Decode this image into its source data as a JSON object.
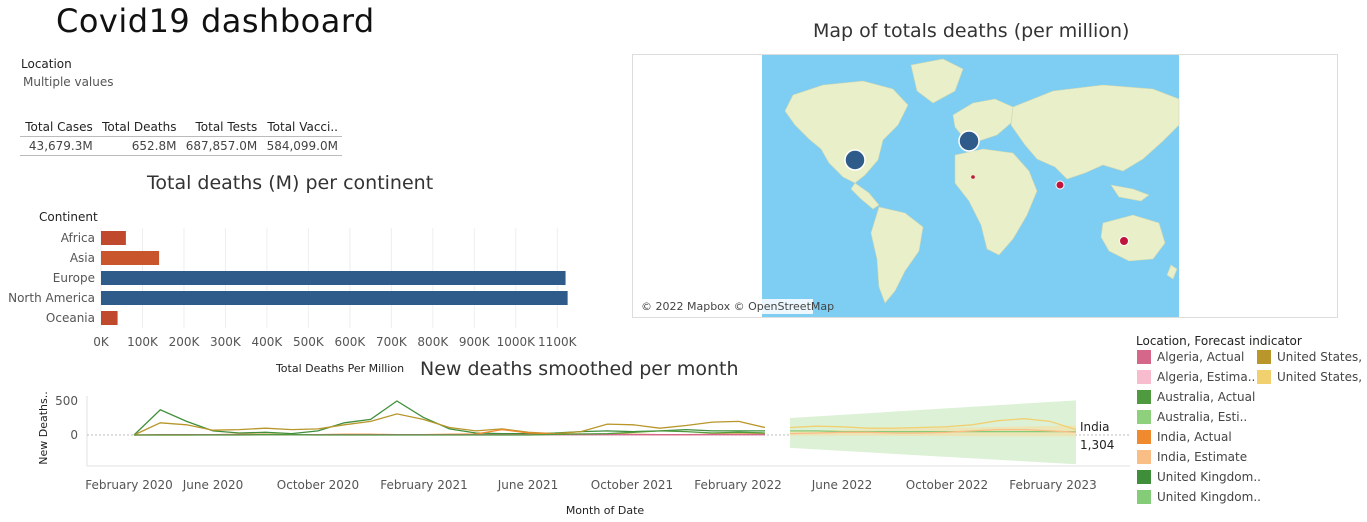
{
  "dashboard": {
    "title": "Covid19  dashboard",
    "filter": {
      "label": "Location",
      "value": "Multiple values"
    }
  },
  "kpis": {
    "headers": [
      "Total Cases",
      "Total Deaths",
      "Total Tests",
      "Total Vacci.."
    ],
    "values": [
      "43,679.3M",
      "652.8M",
      "687,857.0M",
      "584,099.0M"
    ]
  },
  "map": {
    "title": "Map of totals deaths (per million)",
    "attribution": "© 2022 Mapbox © OpenStreetMap",
    "colors": {
      "water": "#7ecdf2",
      "land": "#e9efc9",
      "high": "#2f5b8b",
      "low": "#c0143c"
    }
  },
  "legend": {
    "title": "Location, Forecast indicator",
    "items": [
      {
        "label": "Algeria, Actual",
        "color": "#d4678a"
      },
      {
        "label": "Algeria, Estima..",
        "color": "#f7bccd"
      },
      {
        "label": "Australia, Actual",
        "color": "#4f9a3e"
      },
      {
        "label": "Australia, Esti..",
        "color": "#8ed07c"
      },
      {
        "label": "India, Actual",
        "color": "#f08a2e"
      },
      {
        "label": "India, Estimate",
        "color": "#f8be85"
      },
      {
        "label": "United Kingdom..",
        "color": "#3f8f3a"
      },
      {
        "label": "United Kingdom..",
        "color": "#85cc78"
      },
      {
        "label": "United States, ..",
        "color": "#b8962a"
      },
      {
        "label": "United States, ..",
        "color": "#f1d070"
      }
    ]
  },
  "chart_data": [
    {
      "type": "bar",
      "orientation": "horizontal",
      "title": "Total deaths (M) per continent",
      "category_label": "Continent",
      "xlabel": "Total Deaths Per Million",
      "categories": [
        "Africa",
        "Asia",
        "Europe",
        "North America",
        "Oceania"
      ],
      "values": [
        60000,
        140000,
        1120000,
        1125000,
        40000
      ],
      "colors": [
        "#c0482c",
        "#c8552c",
        "#2f5b8b",
        "#2f5b8b",
        "#c0482c"
      ],
      "xlim": [
        0,
        1150000
      ],
      "xticks": [
        "0K",
        "100K",
        "200K",
        "300K",
        "400K",
        "500K",
        "600K",
        "700K",
        "800K",
        "900K",
        "1000K",
        "1100K"
      ]
    },
    {
      "type": "map",
      "points": [
        {
          "location": "United States",
          "size": "large",
          "color": "#2f5b8b"
        },
        {
          "location": "United Kingdom",
          "size": "large",
          "color": "#2f5b8b"
        },
        {
          "location": "Algeria",
          "size": "tiny",
          "color": "#c0143c"
        },
        {
          "location": "India",
          "size": "small",
          "color": "#c0143c"
        },
        {
          "location": "Australia",
          "size": "small",
          "color": "#c0143c"
        }
      ]
    },
    {
      "type": "line",
      "title": "New deaths smoothed per month",
      "xlabel": "Month of Date",
      "ylabel": "New Deaths..",
      "yticks": [
        0,
        500
      ],
      "xticks": [
        "February 2020",
        "June 2020",
        "October 2020",
        "February 2021",
        "June 2021",
        "October 2021",
        "February 2022",
        "June 2022",
        "October 2022",
        "February 2023"
      ],
      "annotation": {
        "label": "India",
        "value": "1,304"
      },
      "forecast_band_color": "#d9efd3",
      "series": [
        {
          "name": "United Kingdom, Actual",
          "color": "#3f8f3a",
          "values": [
            0,
            370,
            200,
            60,
            30,
            40,
            20,
            60,
            180,
            230,
            500,
            260,
            90,
            30,
            20,
            20,
            30,
            50,
            60,
            50,
            60,
            80,
            60,
            60,
            60
          ]
        },
        {
          "name": "United States, Actual",
          "color": "#b8962a",
          "values": [
            0,
            180,
            150,
            70,
            80,
            100,
            80,
            90,
            150,
            200,
            310,
            230,
            110,
            60,
            90,
            40,
            20,
            50,
            160,
            150,
            100,
            140,
            190,
            200,
            110
          ]
        },
        {
          "name": "India, Actual",
          "color": "#f08a2e",
          "values": [
            0,
            0,
            0,
            5,
            10,
            10,
            5,
            5,
            10,
            10,
            5,
            5,
            10,
            15,
            80,
            30,
            20,
            15,
            10,
            10,
            5,
            5,
            10,
            15,
            10
          ]
        },
        {
          "name": "Algeria, Actual",
          "color": "#d4678a",
          "values": [
            0,
            5,
            5,
            5,
            5,
            5,
            5,
            5,
            5,
            5,
            5,
            5,
            5,
            5,
            5,
            5,
            5,
            5,
            5,
            5,
            5,
            5,
            5,
            5,
            5
          ]
        },
        {
          "name": "Australia, Actual",
          "color": "#4f9a3e",
          "values": [
            0,
            0,
            0,
            0,
            0,
            5,
            5,
            0,
            0,
            0,
            0,
            0,
            0,
            0,
            0,
            0,
            10,
            15,
            20,
            40,
            60,
            50,
            30,
            40,
            30
          ]
        },
        {
          "name": "United States, Estimate",
          "color": "#f1d070",
          "values": [
            110,
            130,
            120,
            100,
            100,
            110,
            120,
            150,
            210,
            240,
            200,
            80
          ]
        },
        {
          "name": "United Kingdom, Estimate",
          "color": "#85cc78",
          "values": [
            60,
            60,
            50,
            50,
            50,
            50,
            50,
            50,
            50,
            50,
            50,
            50
          ]
        },
        {
          "name": "India, Estimate",
          "color": "#f8be85",
          "values": [
            20,
            30,
            40,
            40,
            30,
            30,
            40,
            60,
            80,
            80,
            60,
            40
          ]
        }
      ]
    }
  ]
}
